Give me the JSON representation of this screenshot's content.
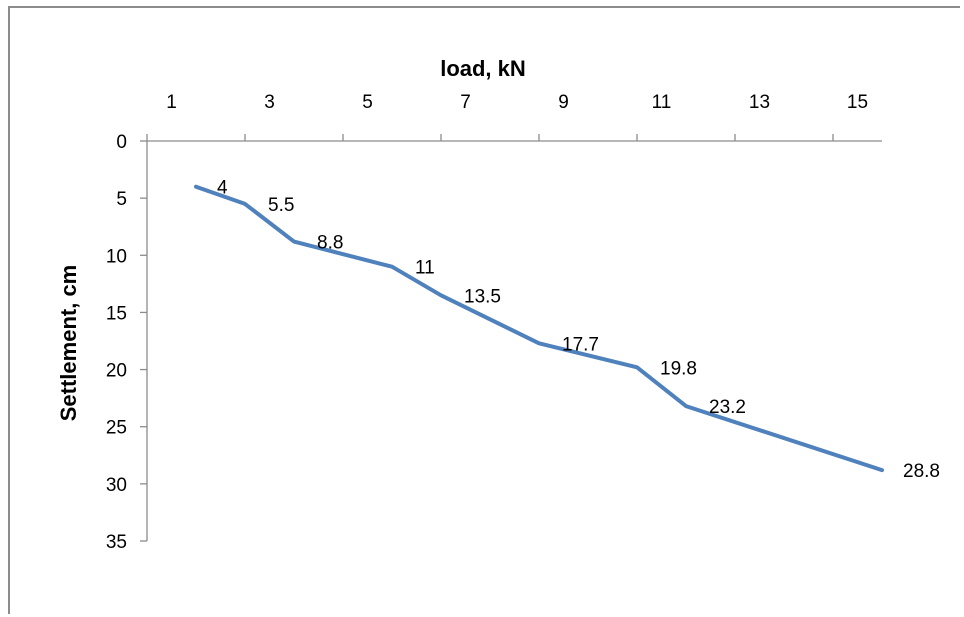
{
  "chart_data": {
    "type": "line",
    "title": "",
    "xlabel": "load, kN",
    "ylabel": "Settlement, cm",
    "x_axis_position": "top",
    "y_axis_reversed": true,
    "xlim": [
      1,
      15
    ],
    "ylim": [
      0,
      35
    ],
    "x_ticks": [
      1,
      3,
      5,
      7,
      9,
      11,
      13,
      15
    ],
    "y_ticks": [
      0,
      5,
      10,
      15,
      20,
      25,
      30,
      35
    ],
    "x_tick_labels": [
      "1",
      "3",
      "5",
      "7",
      "9",
      "11",
      "13",
      "15"
    ],
    "y_tick_labels": [
      "0",
      "5",
      "10",
      "15",
      "20",
      "25",
      "30",
      "35"
    ],
    "categories": [
      1,
      2,
      3,
      4,
      5,
      6,
      7,
      8,
      9,
      10,
      11,
      12,
      13,
      14,
      15
    ],
    "grid": false,
    "legend": "none",
    "series": [
      {
        "color": "#4f81bd",
        "points": [
          {
            "x": 1.5,
            "y": 4,
            "label": "4"
          },
          {
            "x": 2.5,
            "y": 5.5,
            "label": "5.5"
          },
          {
            "x": 3.5,
            "y": 8.8,
            "label": "8.8"
          },
          {
            "x": 5.5,
            "y": 11,
            "label": "11"
          },
          {
            "x": 6.5,
            "y": 13.5,
            "label": "13.5"
          },
          {
            "x": 8.5,
            "y": 17.7,
            "label": "17.7"
          },
          {
            "x": 10.5,
            "y": 19.8,
            "label": "19.8"
          },
          {
            "x": 11.5,
            "y": 23.2,
            "label": "23.2"
          },
          {
            "x": 15.5,
            "y": 28.8,
            "label": "28.8"
          }
        ]
      }
    ]
  }
}
